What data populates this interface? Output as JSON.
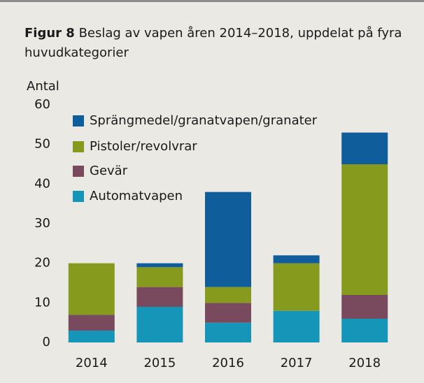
{
  "chart_data": {
    "type": "stacked_bar",
    "figure_label": "Figur 8",
    "title": "Beslag av vapen åren 2014–2018, uppdelat på fyra huvudkategorier",
    "y_label": "Antal",
    "categories": [
      "2014",
      "2015",
      "2016",
      "2017",
      "2018"
    ],
    "series": [
      {
        "name": "Automatvapen",
        "color": "#1596b8",
        "values": [
          3,
          9,
          5,
          8,
          6
        ]
      },
      {
        "name": "Gevär",
        "color": "#794a5d",
        "values": [
          4,
          5,
          5,
          0,
          6
        ]
      },
      {
        "name": "Pistoler/revolvrar",
        "color": "#869a1d",
        "values": [
          13,
          5,
          4,
          12,
          33
        ]
      },
      {
        "name": "Sprängmedel/granatvapen/granater",
        "color": "#105d9b",
        "values": [
          0,
          1,
          24,
          2,
          8
        ]
      }
    ],
    "ylim": [
      0,
      60
    ],
    "yticks": [
      0,
      10,
      20,
      30,
      40,
      50,
      60
    ],
    "grid": false,
    "legend": "top-left"
  }
}
